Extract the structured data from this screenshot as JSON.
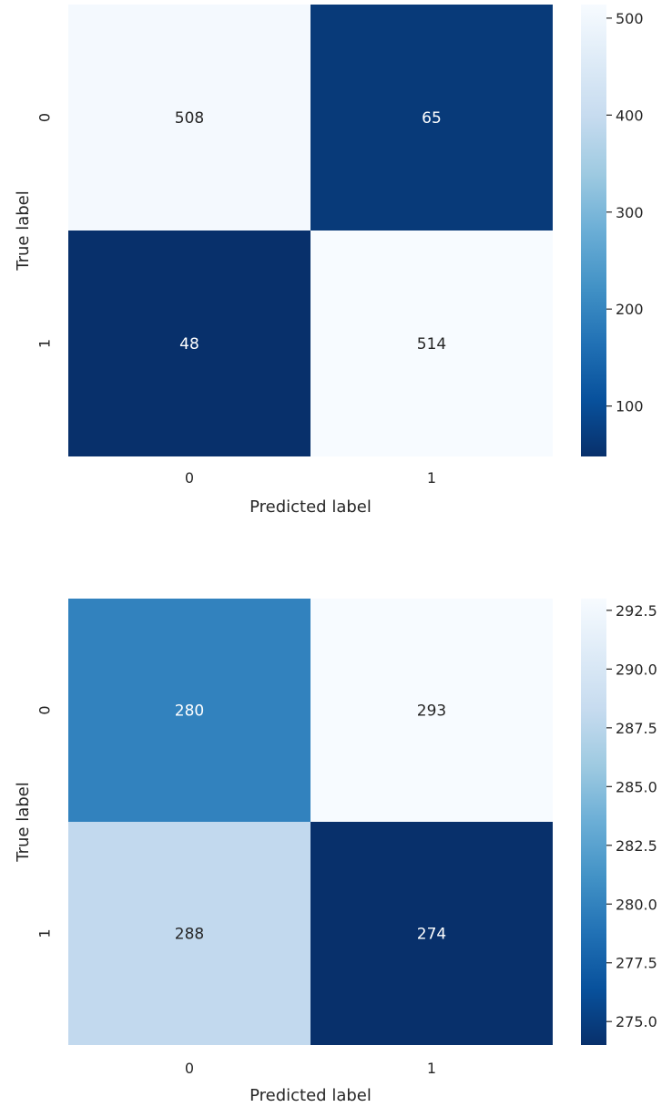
{
  "chart_data": [
    {
      "type": "heatmap",
      "xlabel": "Predicted label",
      "ylabel": "True label",
      "x_ticks": [
        "0",
        "1"
      ],
      "y_ticks": [
        "0",
        "1"
      ],
      "values": [
        [
          508,
          65
        ],
        [
          48,
          514
        ]
      ],
      "colormap": "Blues",
      "colorbar": {
        "range": [
          48,
          514
        ],
        "ticks": [
          100,
          200,
          300,
          400,
          500
        ],
        "tick_labels": [
          "100",
          "200",
          "300",
          "400",
          "500"
        ]
      }
    },
    {
      "type": "heatmap",
      "xlabel": "Predicted label",
      "ylabel": "True label",
      "x_ticks": [
        "0",
        "1"
      ],
      "y_ticks": [
        "0",
        "1"
      ],
      "values": [
        [
          280,
          293
        ],
        [
          288,
          274
        ]
      ],
      "colormap": "Blues",
      "colorbar": {
        "range": [
          274,
          293
        ],
        "ticks": [
          275,
          277.5,
          280,
          282.5,
          285,
          287.5,
          290,
          292.5
        ],
        "tick_labels": [
          "275.0",
          "277.5",
          "280.0",
          "282.5",
          "285.0",
          "287.5",
          "290.0",
          "292.5"
        ]
      }
    }
  ]
}
